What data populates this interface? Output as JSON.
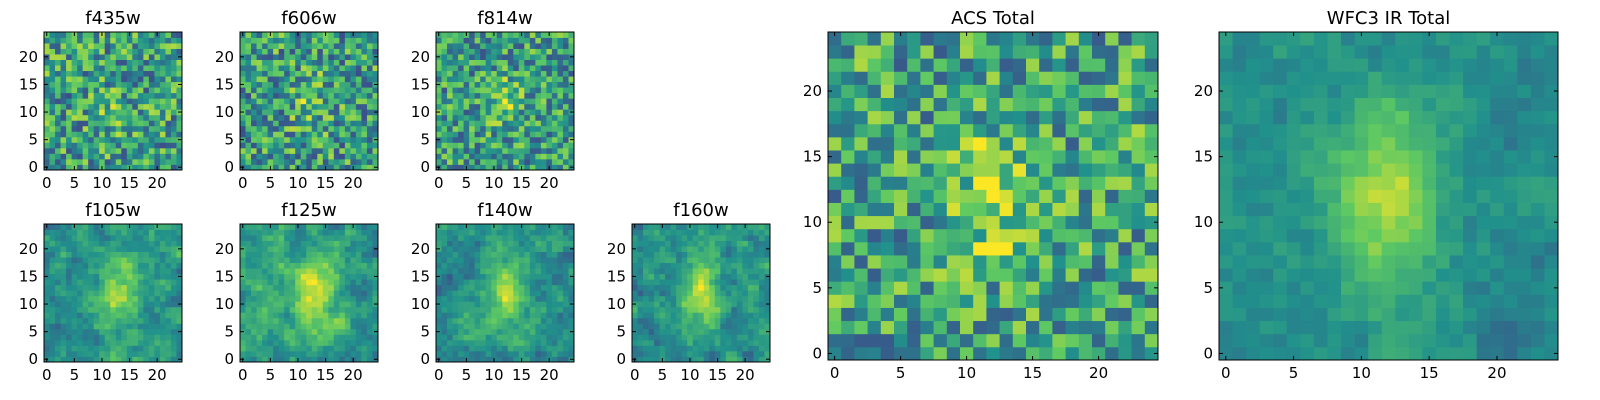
{
  "figure": {
    "colormap": [
      "#440154",
      "#3b528b",
      "#21918c",
      "#5ec962",
      "#fde725"
    ]
  },
  "chart_data": [
    {
      "type": "heatmap",
      "title": "f435w",
      "size": 25,
      "seed": 11,
      "xticks": [
        0,
        5,
        10,
        15,
        20
      ],
      "yticks": [
        0,
        5,
        10,
        15,
        20
      ],
      "xlim": [
        -0.5,
        24.5
      ],
      "ylim": [
        -0.5,
        24.5
      ],
      "source": {
        "center": [
          12,
          10
        ],
        "sigma": [
          2.0,
          3.0
        ],
        "amp": 0.12
      },
      "noise": 0.32,
      "base": 0.56,
      "smooth": 0
    },
    {
      "type": "heatmap",
      "title": "f606w",
      "size": 25,
      "seed": 23,
      "xticks": [
        0,
        5,
        10,
        15,
        20
      ],
      "yticks": [
        0,
        5,
        10,
        15,
        20
      ],
      "xlim": [
        -0.5,
        24.5
      ],
      "ylim": [
        -0.5,
        24.5
      ],
      "source": {
        "center": [
          12,
          12
        ],
        "sigma": [
          2.0,
          3.5
        ],
        "amp": 0.18
      },
      "noise": 0.32,
      "base": 0.55,
      "smooth": 0
    },
    {
      "type": "heatmap",
      "title": "f814w",
      "size": 25,
      "seed": 37,
      "xticks": [
        0,
        5,
        10,
        15,
        20
      ],
      "yticks": [
        0,
        5,
        10,
        15,
        20
      ],
      "xlim": [
        -0.5,
        24.5
      ],
      "ylim": [
        -0.5,
        24.5
      ],
      "source": {
        "center": [
          12,
          12
        ],
        "sigma": [
          2.0,
          3.0
        ],
        "amp": 0.25
      },
      "noise": 0.3,
      "base": 0.55,
      "smooth": 0
    },
    {
      "type": "heatmap",
      "title": "f105w",
      "size": 25,
      "seed": 41,
      "xticks": [
        0,
        5,
        10,
        15,
        20
      ],
      "yticks": [
        0,
        5,
        10,
        15,
        20
      ],
      "xlim": [
        -0.5,
        24.5
      ],
      "ylim": [
        -0.5,
        24.5
      ],
      "source": {
        "center": [
          13,
          12
        ],
        "sigma": [
          2.5,
          5.0
        ],
        "amp": 0.4
      },
      "noise": 0.32,
      "base": 0.5,
      "smooth": 1
    },
    {
      "type": "heatmap",
      "title": "f125w",
      "size": 25,
      "seed": 53,
      "xticks": [
        0,
        5,
        10,
        15,
        20
      ],
      "yticks": [
        0,
        5,
        10,
        15,
        20
      ],
      "xlim": [
        -0.5,
        24.5
      ],
      "ylim": [
        -0.5,
        24.5
      ],
      "source": {
        "center": [
          13,
          12
        ],
        "sigma": [
          2.5,
          5.5
        ],
        "amp": 0.4
      },
      "noise": 0.32,
      "base": 0.55,
      "smooth": 1
    },
    {
      "type": "heatmap",
      "title": "f140w",
      "size": 25,
      "seed": 67,
      "xticks": [
        0,
        5,
        10,
        15,
        20
      ],
      "yticks": [
        0,
        5,
        10,
        15,
        20
      ],
      "xlim": [
        -0.5,
        24.5
      ],
      "ylim": [
        -0.5,
        24.5
      ],
      "source": {
        "center": [
          12,
          12
        ],
        "sigma": [
          2.5,
          5.0
        ],
        "amp": 0.38
      },
      "noise": 0.3,
      "base": 0.5,
      "smooth": 1
    },
    {
      "type": "heatmap",
      "title": "f160w",
      "size": 25,
      "seed": 79,
      "xticks": [
        0,
        5,
        10,
        15,
        20
      ],
      "yticks": [
        0,
        5,
        10,
        15,
        20
      ],
      "xlim": [
        -0.5,
        24.5
      ],
      "ylim": [
        -0.5,
        24.5
      ],
      "source": {
        "center": [
          12,
          12
        ],
        "sigma": [
          2.5,
          4.5
        ],
        "amp": 0.42
      },
      "noise": 0.3,
      "base": 0.5,
      "smooth": 1
    },
    {
      "type": "heatmap",
      "title": "ACS Total",
      "size": 25,
      "seed": 97,
      "xticks": [
        0,
        5,
        10,
        15,
        20
      ],
      "yticks": [
        0,
        5,
        10,
        15,
        20
      ],
      "xlim": [
        -0.5,
        24.5
      ],
      "ylim": [
        -0.5,
        24.5
      ],
      "source": {
        "center": [
          12,
          12
        ],
        "sigma": [
          2.0,
          3.5
        ],
        "amp": 0.28
      },
      "noise": 0.3,
      "base": 0.58,
      "smooth": 0
    },
    {
      "type": "heatmap",
      "title": "WFC3 IR Total",
      "size": 25,
      "seed": 131,
      "xticks": [
        0,
        5,
        10,
        15,
        20
      ],
      "yticks": [
        0,
        5,
        10,
        15,
        20
      ],
      "xlim": [
        -0.5,
        24.5
      ],
      "ylim": [
        -0.5,
        24.5
      ],
      "source": {
        "center": [
          12,
          12
        ],
        "sigma": [
          2.5,
          5.0
        ],
        "amp": 0.48
      },
      "noise": 0.18,
      "base": 0.48,
      "smooth": 2
    }
  ]
}
